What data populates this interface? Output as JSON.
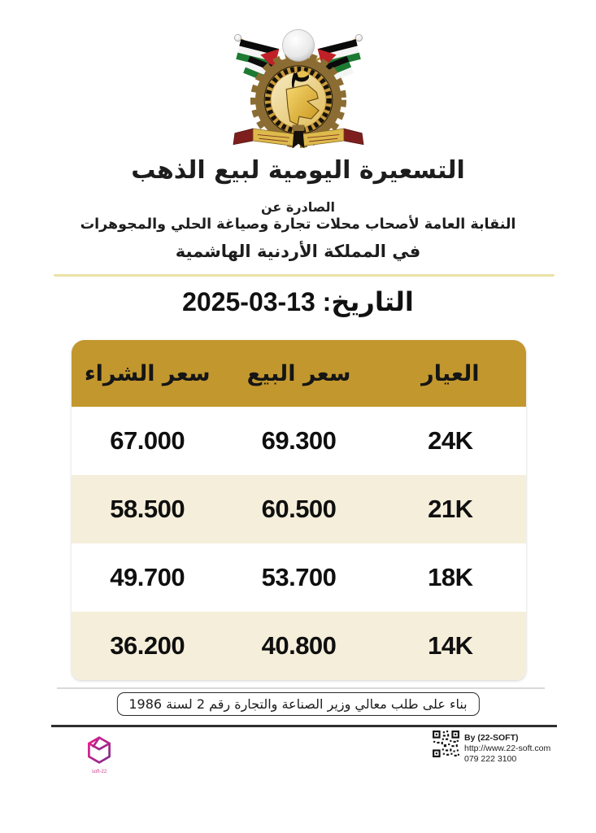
{
  "header": {
    "logo": "jordan-jewelers-syndicate-emblem",
    "title": "التسعيرة اليومية لبيع الذهب",
    "issued_by": "الصادرة عن",
    "syndicate": "النقابة العامة لأصحاب محلات تجارة وصياغة الحلي والمجوهرات",
    "kingdom": "في المملكة الأردنية الهاشمية"
  },
  "date_line": {
    "label": "التاريخ:",
    "value": "13-03-2025"
  },
  "price_table": {
    "columns": [
      {
        "key": "karat",
        "label": "العيار"
      },
      {
        "key": "sell",
        "label": "سعر البيع"
      },
      {
        "key": "buy",
        "label": "سعر الشراء"
      }
    ],
    "rows": [
      {
        "karat": "24K",
        "sell": "69.300",
        "buy": "67.000"
      },
      {
        "karat": "21K",
        "sell": "60.500",
        "buy": "58.500"
      },
      {
        "karat": "18K",
        "sell": "53.700",
        "buy": "49.700"
      },
      {
        "karat": "14K",
        "sell": "40.800",
        "buy": "36.200"
      }
    ],
    "colors": {
      "header_bg": "#C2972E",
      "row_bg": "#FFFFFF",
      "row_alt_bg": "#F5EEDA"
    }
  },
  "footer": {
    "decree_note": "بناء على طلب معالي وزير الصناعة والتجارة رقم 2 لسنة 1986",
    "credit": {
      "by": "By (22-SOFT)",
      "url": "http://www.22-soft.com",
      "phone": "079 222 3100"
    },
    "soft_logo_text": "22-soft",
    "accent_pink": "#D63E8F"
  }
}
